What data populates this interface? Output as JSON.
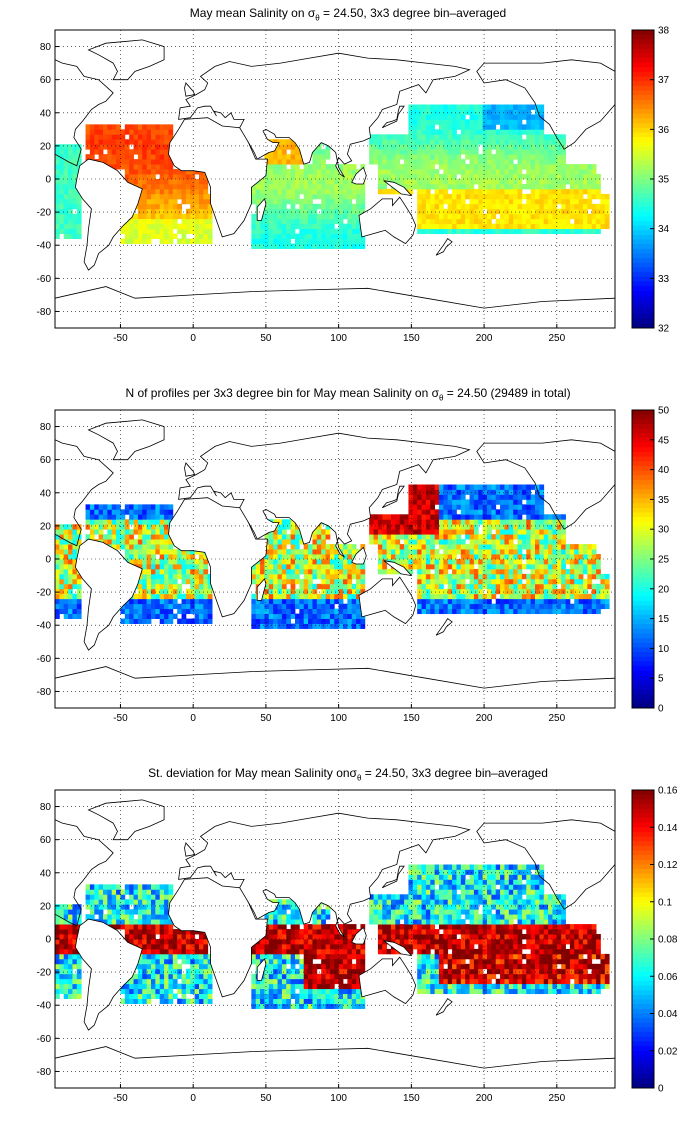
{
  "chart_data": [
    {
      "type": "heatmap",
      "title_prefix": "May mean Salinity on ",
      "title_sigma": "σ",
      "title_sub": "θ",
      "title_suffix": " = 24.50, 3x3 degree bin–averaged",
      "xlabel": "",
      "ylabel": "",
      "xlim": [
        -95,
        290
      ],
      "ylim": [
        -90,
        90
      ],
      "x_ticks": [
        "-50",
        "0",
        "50",
        "100",
        "150",
        "200",
        "250"
      ],
      "y_ticks": [
        "80",
        "60",
        "40",
        "20",
        "0",
        "-20",
        "-40",
        "-60",
        "-80"
      ],
      "colorbar": {
        "min": 32,
        "max": 38,
        "ticks": [
          "38",
          "37",
          "36",
          "35",
          "34",
          "33",
          "32"
        ]
      },
      "grid": true,
      "colormap": "jet"
    },
    {
      "type": "heatmap",
      "title_prefix": "N of profiles per 3x3 degree bin for May mean Salinity on ",
      "title_sigma": "σ",
      "title_sub": "θ",
      "title_suffix": " = 24.50 (29489 in total)",
      "xlabel": "",
      "ylabel": "",
      "xlim": [
        -95,
        290
      ],
      "ylim": [
        -90,
        90
      ],
      "x_ticks": [
        "-50",
        "0",
        "50",
        "100",
        "150",
        "200",
        "250"
      ],
      "y_ticks": [
        "80",
        "60",
        "40",
        "20",
        "0",
        "-20",
        "-40",
        "-60",
        "-80"
      ],
      "colorbar": {
        "min": 0,
        "max": 50,
        "ticks": [
          "50",
          "45",
          "40",
          "35",
          "30",
          "25",
          "20",
          "15",
          "10",
          "5",
          "0"
        ]
      },
      "grid": true,
      "colormap": "jet"
    },
    {
      "type": "heatmap",
      "title_prefix": "St. deviation for May mean Salinity on",
      "title_sigma": "σ",
      "title_sub": "θ",
      "title_suffix": " = 24.50, 3x3 degree bin–averaged",
      "xlabel": "",
      "ylabel": "",
      "xlim": [
        -95,
        290
      ],
      "ylim": [
        -90,
        90
      ],
      "x_ticks": [
        "-50",
        "0",
        "50",
        "100",
        "150",
        "200",
        "250"
      ],
      "y_ticks": [
        "80",
        "60",
        "40",
        "20",
        "0",
        "-20",
        "-40",
        "-60",
        "-80"
      ],
      "colorbar": {
        "min": 0,
        "max": 0.16,
        "ticks": [
          "0.16",
          "0.14",
          "0.12",
          "0.1",
          "0.08",
          "0.06",
          "0.04",
          "0.02",
          "0"
        ]
      },
      "grid": true,
      "colormap": "jet"
    }
  ]
}
